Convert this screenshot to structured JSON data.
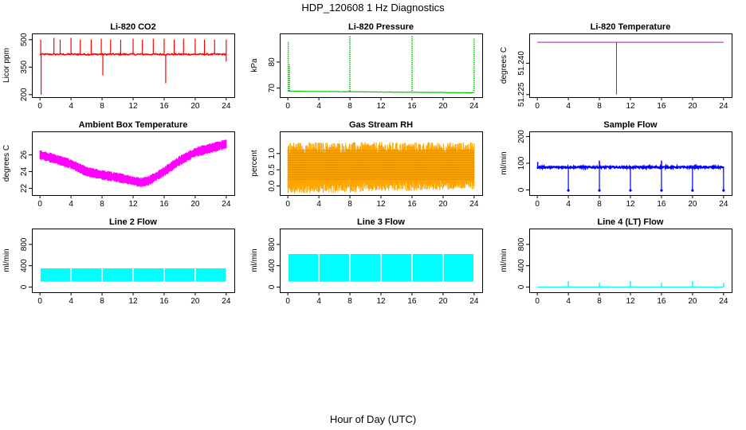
{
  "figure": {
    "title": "HDP_120608  1 Hz Diagnostics",
    "xlabel": "Hour of Day (UTC)"
  },
  "chart_data": [
    {
      "type": "line",
      "title": "Li-820 CO2",
      "ylabel": "Licor ppm",
      "color": "#ff0000",
      "xlim": [
        0,
        24
      ],
      "ylim": [
        200,
        520
      ],
      "xticks": [
        0,
        4,
        8,
        12,
        16,
        20,
        24
      ],
      "yticks": [
        200,
        350,
        500
      ],
      "ytick_labels": [
        "200",
        "350",
        "500"
      ],
      "baseline": 420,
      "spikes_up": [
        [
          0.1,
          500
        ],
        [
          1.8,
          510
        ],
        [
          2.6,
          500
        ],
        [
          4.0,
          510
        ],
        [
          5.2,
          500
        ],
        [
          6.6,
          500
        ],
        [
          7.9,
          505
        ],
        [
          9.1,
          500
        ],
        [
          10.4,
          500
        ],
        [
          12.0,
          505
        ],
        [
          13.2,
          500
        ],
        [
          14.6,
          505
        ],
        [
          16.0,
          505
        ],
        [
          17.3,
          500
        ],
        [
          18.5,
          505
        ],
        [
          20.0,
          505
        ],
        [
          21.2,
          500
        ],
        [
          22.5,
          500
        ],
        [
          24.0,
          500
        ]
      ],
      "spikes_down": [
        [
          0.15,
          200
        ],
        [
          8.1,
          305
        ],
        [
          16.2,
          262
        ],
        [
          24.0,
          380
        ]
      ]
    },
    {
      "type": "line",
      "title": "Li-820 Pressure",
      "ylabel": "kPa",
      "color": "#00cc00",
      "xlim": [
        0,
        24
      ],
      "ylim": [
        67.5,
        90
      ],
      "xticks": [
        0,
        4,
        8,
        12,
        16,
        20,
        24
      ],
      "yticks": [
        70,
        80
      ],
      "ytick_labels": [
        "70",
        "80"
      ],
      "baseline_start": 68.8,
      "baseline_end": 68.2,
      "spikes": [
        [
          0.05,
          88
        ],
        [
          0.2,
          79
        ],
        [
          8.0,
          90
        ],
        [
          16.0,
          90
        ],
        [
          24.0,
          89
        ]
      ]
    },
    {
      "type": "line",
      "title": "Li-820 Temperature",
      "ylabel": "degrees C",
      "color": "#cc00cc",
      "xlim": [
        0,
        24
      ],
      "ylim": [
        51.225,
        51.253
      ],
      "xticks": [
        0,
        4,
        8,
        12,
        16,
        20,
        24
      ],
      "yticks": [
        51.225,
        51.24
      ],
      "ytick_labels": [
        "51.225",
        "51.240"
      ],
      "baseline": 51.25,
      "drop": [
        10.2,
        51.225
      ]
    },
    {
      "type": "area",
      "title": "Ambient Box Temperature",
      "ylabel": "degrees C",
      "color": "#ff00ff",
      "xlim": [
        0,
        24
      ],
      "ylim": [
        21.5,
        28.5
      ],
      "xticks": [
        0,
        4,
        8,
        12,
        16,
        20,
        24
      ],
      "yticks": [
        22,
        24,
        26
      ],
      "ytick_labels": [
        "22",
        "24",
        "26"
      ],
      "x": [
        0,
        2,
        4,
        6,
        8,
        10,
        12,
        13,
        14,
        16,
        18,
        20,
        22,
        24
      ],
      "y_mid": [
        26.0,
        25.5,
        24.9,
        24.0,
        23.6,
        23.3,
        22.9,
        22.7,
        22.9,
        24.0,
        25.3,
        26.3,
        26.8,
        27.3
      ],
      "band": 0.5
    },
    {
      "type": "area",
      "title": "Gas Stream RH",
      "ylabel": "percent",
      "color": "#ffa500",
      "xlim": [
        0,
        24
      ],
      "ylim": [
        -0.2,
        1.6
      ],
      "xticks": [
        0,
        4,
        8,
        12,
        16,
        20,
        24
      ],
      "yticks": [
        0.0,
        0.5,
        1.0
      ],
      "ytick_labels": [
        "0.0",
        "0.5",
        "1.0"
      ],
      "low": 0.05,
      "high": 1.1
    },
    {
      "type": "line",
      "title": "Sample Flow",
      "ylabel": "ml/min",
      "color": "#0000ff",
      "xlim": [
        0,
        24
      ],
      "ylim": [
        -10,
        210
      ],
      "xticks": [
        0,
        4,
        8,
        12,
        16,
        20,
        24
      ],
      "yticks": [
        0,
        100,
        200
      ],
      "ytick_labels": [
        "0",
        "100",
        "200"
      ],
      "baseline": 85,
      "dips": [
        4,
        8,
        12,
        16,
        20,
        24
      ],
      "peaks": [
        [
          0.05,
          105
        ],
        [
          8.0,
          110
        ],
        [
          16.0,
          110
        ]
      ]
    },
    {
      "type": "area",
      "title": "Line 2 Flow",
      "ylabel": "ml/min",
      "color": "#00ffff",
      "xlim": [
        0,
        24
      ],
      "ylim": [
        -50,
        1050
      ],
      "xticks": [
        0,
        4,
        8,
        12,
        16,
        20,
        24
      ],
      "yticks": [
        0,
        400,
        800
      ],
      "ytick_labels": [
        "0",
        "400",
        "800"
      ],
      "low": 100,
      "high": 350,
      "gaps": [
        4,
        8,
        12,
        16,
        20
      ]
    },
    {
      "type": "area",
      "title": "Line 3 Flow",
      "ylabel": "ml/min",
      "color": "#00ffff",
      "xlim": [
        0,
        24
      ],
      "ylim": [
        -50,
        1050
      ],
      "xticks": [
        0,
        4,
        8,
        12,
        16,
        20,
        24
      ],
      "yticks": [
        0,
        400,
        800
      ],
      "ytick_labels": [
        "0",
        "400",
        "800"
      ],
      "low": 100,
      "high": 620,
      "gaps": [
        4,
        8,
        12,
        16,
        20
      ]
    },
    {
      "type": "line",
      "title": "Line 4 (LT) Flow",
      "ylabel": "ml/min",
      "color": "#00ffff",
      "xlim": [
        0,
        24
      ],
      "ylim": [
        -50,
        1050
      ],
      "xticks": [
        0,
        4,
        8,
        12,
        16,
        20,
        24
      ],
      "yticks": [
        0,
        400,
        800
      ],
      "ytick_labels": [
        "0",
        "400",
        "800"
      ],
      "baseline": 0,
      "spikes": [
        [
          4,
          110
        ],
        [
          8,
          80
        ],
        [
          12,
          110
        ],
        [
          16,
          80
        ],
        [
          20,
          110
        ],
        [
          24,
          80
        ]
      ]
    }
  ]
}
